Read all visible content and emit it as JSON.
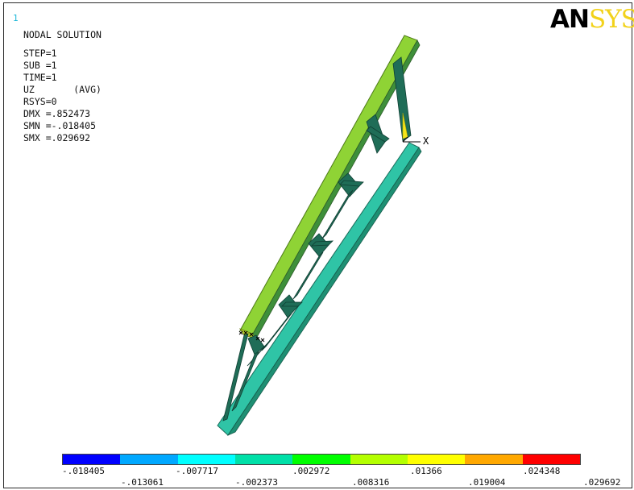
{
  "window_number": "1",
  "info": {
    "title": "NODAL SOLUTION",
    "lines": [
      "STEP=1",
      "SUB =1",
      "TIME=1",
      "UZ       (AVG)",
      "RSYS=0",
      "DMX =.852473",
      "SMN =-.018405",
      "SMX =.029692"
    ]
  },
  "logo": {
    "part1": "AN",
    "part2": "SYS"
  },
  "axis_label": "X",
  "legend": {
    "colors": [
      "#0000ff",
      "#00a8ff",
      "#00ffff",
      "#00e0a8",
      "#00ff00",
      "#b4ff00",
      "#ffff00",
      "#ffa800",
      "#ff0000"
    ],
    "labels_top": [
      "-.018405",
      "-.007717",
      ".002972",
      ".01366",
      ".024348"
    ],
    "labels_bottom": [
      "-.013061",
      "-.002373",
      ".008316",
      ".019004",
      ".029692"
    ]
  }
}
